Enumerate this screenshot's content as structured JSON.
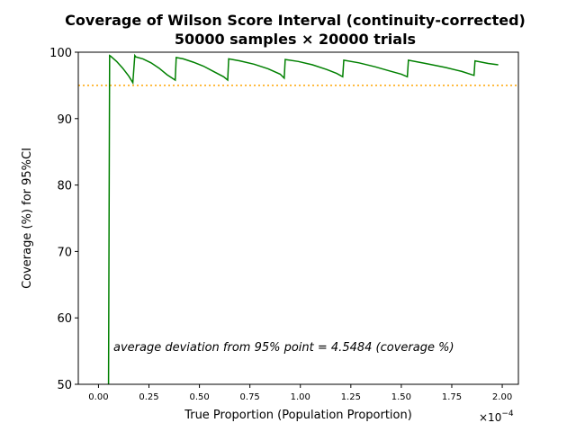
{
  "chart_data": {
    "type": "line",
    "title": "Coverage of Wilson Score Interval (continuity-corrected)",
    "subtitle": "50000 samples × 20000 trials",
    "xlabel": "True Proportion (Population Proportion)",
    "ylabel": "Coverage (%) for 95%CI",
    "x_scale_label": "×10",
    "x_scale_exponent": "−4",
    "xlim": [
      -0.1,
      2.08
    ],
    "ylim": [
      50,
      100
    ],
    "x_ticks": [
      0.0,
      0.25,
      0.5,
      0.75,
      1.0,
      1.25,
      1.5,
      1.75,
      2.0
    ],
    "x_tick_labels": [
      "0.00",
      "0.25",
      "0.50",
      "0.75",
      "1.00",
      "1.25",
      "1.50",
      "1.75",
      "2.00"
    ],
    "y_ticks": [
      50,
      60,
      70,
      80,
      90,
      100
    ],
    "y_tick_labels": [
      "50",
      "60",
      "70",
      "80",
      "90",
      "100"
    ],
    "grid": false,
    "annotation": "average deviation from 95% point = 4.5484 (coverage %)",
    "reference_line": {
      "y": 95,
      "style": "dotted",
      "color": "#ffa500"
    },
    "series": [
      {
        "color": "#008000",
        "x": [
          0.05,
          0.055,
          0.06,
          0.09,
          0.12,
          0.15,
          0.17,
          0.18,
          0.185,
          0.22,
          0.26,
          0.3,
          0.34,
          0.38,
          0.385,
          0.42,
          0.47,
          0.52,
          0.57,
          0.62,
          0.64,
          0.645,
          0.7,
          0.77,
          0.84,
          0.9,
          0.92,
          0.925,
          0.99,
          1.06,
          1.13,
          1.18,
          1.21,
          1.215,
          1.29,
          1.37,
          1.44,
          1.5,
          1.53,
          1.535,
          1.62,
          1.72,
          1.8,
          1.86,
          1.865,
          1.93,
          1.98
        ],
        "y": [
          50.0,
          99.5,
          99.4,
          98.6,
          97.6,
          96.4,
          95.4,
          99.5,
          99.3,
          99.0,
          98.4,
          97.6,
          96.6,
          95.8,
          99.2,
          99.0,
          98.5,
          97.9,
          97.1,
          96.3,
          95.8,
          99.0,
          98.7,
          98.2,
          97.5,
          96.7,
          96.1,
          98.9,
          98.6,
          98.1,
          97.4,
          96.8,
          96.3,
          98.8,
          98.4,
          97.8,
          97.2,
          96.7,
          96.3,
          98.8,
          98.3,
          97.7,
          97.1,
          96.5,
          98.7,
          98.3,
          98.1
        ]
      }
    ]
  }
}
